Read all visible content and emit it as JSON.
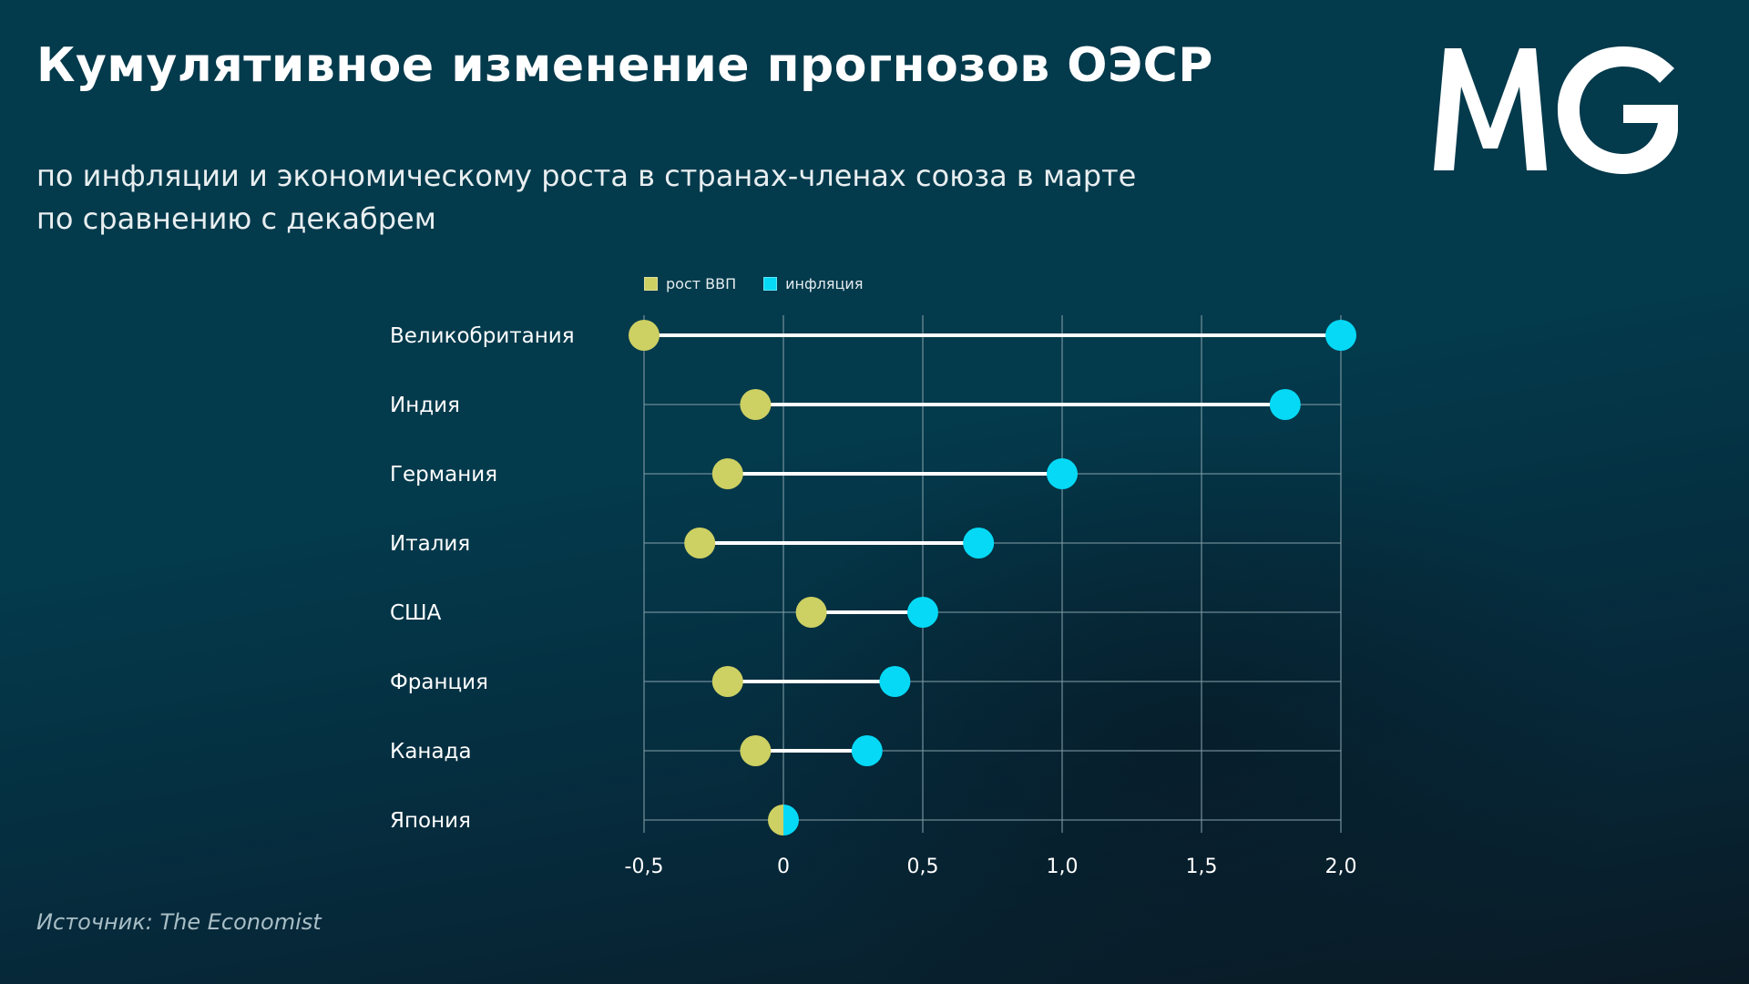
{
  "header": {
    "title": "Кумулятивное изменение прогнозов ОЭСР",
    "subtitle_line1": "по инфляции и экономическому роста в странах-членах союза в марте",
    "subtitle_line2": "по сравнению с декабрем",
    "logo_text": "MG"
  },
  "source": "Источник:  The Economist",
  "colors": {
    "gdp": "#cdd062",
    "inflation": "#05d9f5",
    "connector": "#ffffff",
    "grid": "#7f9aa4"
  },
  "chart_data": {
    "type": "dumbbell",
    "title": "Кумулятивное изменение прогнозов ОЭСР",
    "xlabel": "",
    "ylabel": "",
    "xlim": [
      -0.5,
      2.0
    ],
    "grid": true,
    "legend_position": "top",
    "x_ticks": [
      -0.5,
      0,
      0.5,
      1.0,
      1.5,
      2.0
    ],
    "x_tick_labels": [
      "-0,5",
      "0",
      "0,5",
      "1,0",
      "1,5",
      "2,0"
    ],
    "categories": [
      "Великобритания",
      "Индия",
      "Германия",
      "Италия",
      "США",
      "Франция",
      "Канада",
      "Япония"
    ],
    "series": [
      {
        "name": "рост ВВП",
        "values": [
          -0.5,
          -0.1,
          -0.2,
          -0.3,
          0.1,
          -0.2,
          -0.1,
          0.0
        ]
      },
      {
        "name": "инфляция",
        "values": [
          2.0,
          1.8,
          1.0,
          0.7,
          0.5,
          0.4,
          0.3,
          0.0
        ]
      }
    ]
  }
}
